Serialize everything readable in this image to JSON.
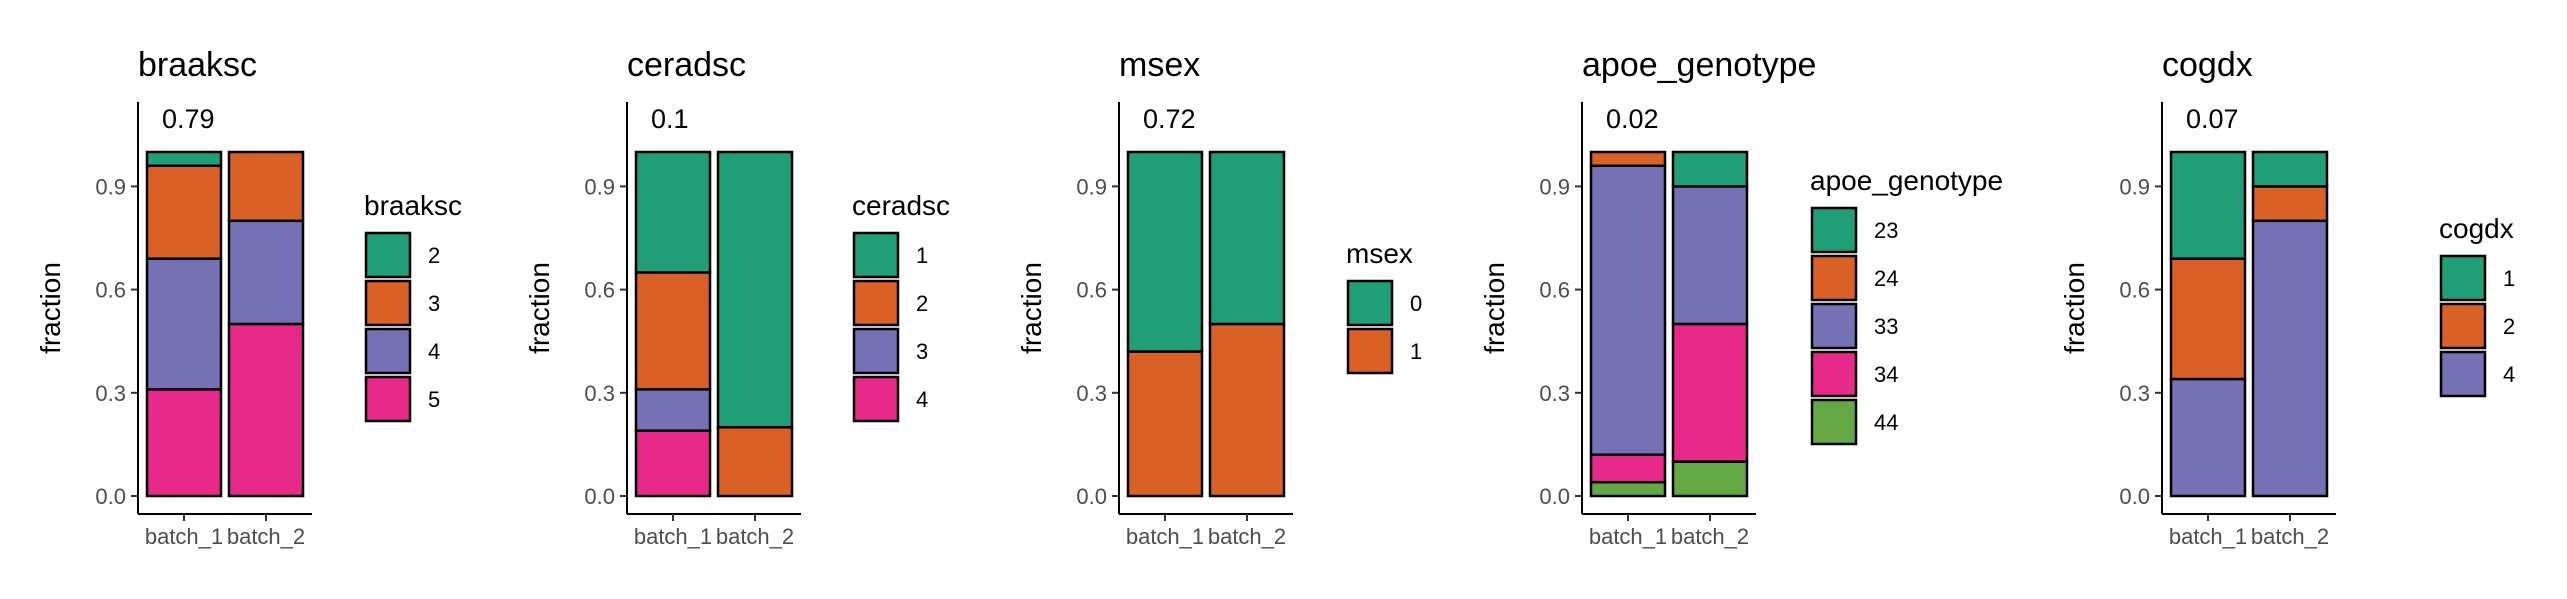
{
  "figure": {
    "ylabel": "fraction"
  },
  "chart_data": [
    {
      "type": "bar",
      "stacked": true,
      "title": "braaksc",
      "annotation": "0.79",
      "xlabel": "",
      "ylabel": "fraction",
      "ylim": [
        0,
        1
      ],
      "y_ticks": [
        "0.0",
        "0.3",
        "0.6",
        "0.9"
      ],
      "categories": [
        "batch_1",
        "batch_2"
      ],
      "legend_title": "braaksc",
      "series": [
        {
          "name": "2",
          "values": [
            0.04,
            0.0
          ]
        },
        {
          "name": "3",
          "values": [
            0.27,
            0.2
          ]
        },
        {
          "name": "4",
          "values": [
            0.38,
            0.3
          ]
        },
        {
          "name": "5",
          "values": [
            0.31,
            0.5
          ]
        }
      ]
    },
    {
      "type": "bar",
      "stacked": true,
      "title": "ceradsc",
      "annotation": "0.1",
      "xlabel": "",
      "ylabel": "fraction",
      "ylim": [
        0,
        1
      ],
      "y_ticks": [
        "0.0",
        "0.3",
        "0.6",
        "0.9"
      ],
      "categories": [
        "batch_1",
        "batch_2"
      ],
      "legend_title": "ceradsc",
      "series": [
        {
          "name": "1",
          "values": [
            0.35,
            0.8
          ]
        },
        {
          "name": "2",
          "values": [
            0.34,
            0.2
          ]
        },
        {
          "name": "3",
          "values": [
            0.12,
            0.0
          ]
        },
        {
          "name": "4",
          "values": [
            0.19,
            0.0
          ]
        }
      ]
    },
    {
      "type": "bar",
      "stacked": true,
      "title": "msex",
      "annotation": "0.72",
      "xlabel": "",
      "ylabel": "fraction",
      "ylim": [
        0,
        1
      ],
      "y_ticks": [
        "0.0",
        "0.3",
        "0.6",
        "0.9"
      ],
      "categories": [
        "batch_1",
        "batch_2"
      ],
      "legend_title": "msex",
      "series": [
        {
          "name": "0",
          "values": [
            0.58,
            0.5
          ]
        },
        {
          "name": "1",
          "values": [
            0.42,
            0.5
          ]
        }
      ]
    },
    {
      "type": "bar",
      "stacked": true,
      "title": "apoe_genotype",
      "annotation": "0.02",
      "xlabel": "",
      "ylabel": "fraction",
      "ylim": [
        0,
        1
      ],
      "y_ticks": [
        "0.0",
        "0.3",
        "0.6",
        "0.9"
      ],
      "categories": [
        "batch_1",
        "batch_2"
      ],
      "legend_title": "apoe_genotype",
      "series": [
        {
          "name": "23",
          "values": [
            0.0,
            0.1
          ]
        },
        {
          "name": "24",
          "values": [
            0.04,
            0.0
          ]
        },
        {
          "name": "33",
          "values": [
            0.84,
            0.4
          ]
        },
        {
          "name": "34",
          "values": [
            0.08,
            0.4
          ]
        },
        {
          "name": "44",
          "values": [
            0.04,
            0.1
          ]
        }
      ]
    },
    {
      "type": "bar",
      "stacked": true,
      "title": "cogdx",
      "annotation": "0.07",
      "xlabel": "",
      "ylabel": "fraction",
      "ylim": [
        0,
        1
      ],
      "y_ticks": [
        "0.0",
        "0.3",
        "0.6",
        "0.9"
      ],
      "categories": [
        "batch_1",
        "batch_2"
      ],
      "legend_title": "cogdx",
      "series": [
        {
          "name": "1",
          "values": [
            0.31,
            0.1
          ]
        },
        {
          "name": "2",
          "values": [
            0.35,
            0.1
          ]
        },
        {
          "name": "4",
          "values": [
            0.34,
            0.8
          ]
        }
      ]
    }
  ],
  "palettes": [
    [
      "#1f9e78",
      "#d96026",
      "#7571b4",
      "#e7298a"
    ],
    [
      "#1f9e78",
      "#d96026",
      "#7571b4",
      "#e7298a"
    ],
    [
      "#1f9e78",
      "#d96026"
    ],
    [
      "#1f9e78",
      "#d96026",
      "#7571b4",
      "#e7298a",
      "#66a845"
    ],
    [
      "#1f9e78",
      "#d96026",
      "#7571b4"
    ]
  ]
}
